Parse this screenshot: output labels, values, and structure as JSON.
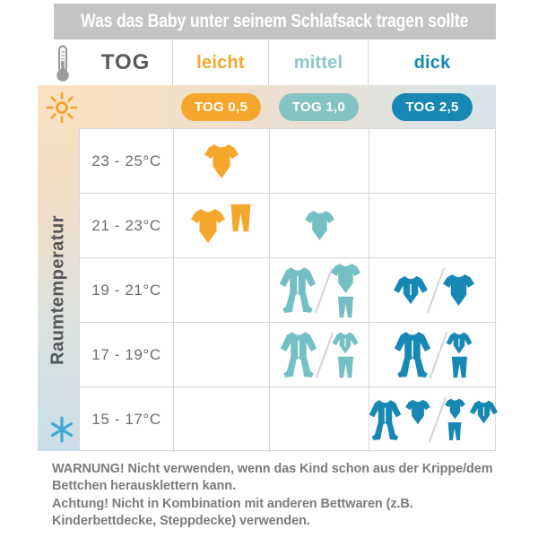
{
  "title": "Was das Baby unter seinem Schlafsack tragen sollte",
  "legend": {
    "tog_label": "TOG"
  },
  "columns": [
    {
      "id": "leicht",
      "label": "leicht",
      "badge": "TOG 0,5",
      "color": "#f5a62c"
    },
    {
      "id": "mittel",
      "label": "mittel",
      "badge": "TOG 1,0",
      "color": "#84c3c4"
    },
    {
      "id": "dick",
      "label": "dick",
      "badge": "TOG 2,5",
      "color": "#1787b4"
    }
  ],
  "sidebar": {
    "label": "Raumtemperatur"
  },
  "rows": [
    {
      "temp": "23 - 25°C",
      "leicht": [
        [
          [
            "bodysuit"
          ]
        ]
      ],
      "mittel": [],
      "dick": []
    },
    {
      "temp": "21 - 23°C",
      "leicht": [
        [
          [
            "bodysuit"
          ],
          [
            "pants"
          ]
        ]
      ],
      "mittel": [
        [
          [
            "bodysuit"
          ]
        ]
      ],
      "dick": []
    },
    {
      "temp": "19 - 21°C",
      "leicht": [],
      "mittel": [
        [
          [
            "sleepsuit"
          ]
        ],
        [
          [
            "bodysuit",
            "pants"
          ]
        ]
      ],
      "dick": [
        [
          [
            "longsleeve"
          ]
        ],
        [
          [
            "bodysuit"
          ]
        ]
      ]
    },
    {
      "temp": "17 - 19°C",
      "leicht": [],
      "mittel": [
        [
          [
            "sleepsuit"
          ]
        ],
        [
          [
            "longsleeve",
            "pants"
          ]
        ]
      ],
      "dick": [
        [
          [
            "sleepsuit"
          ]
        ],
        [
          [
            "longsleeve",
            "pants"
          ]
        ]
      ]
    },
    {
      "temp": "15 - 17°C",
      "leicht": [],
      "mittel": [],
      "dick": [
        [
          [
            "sleepsuit"
          ],
          [
            "bodysuit"
          ]
        ],
        [
          [
            "bodysuit",
            "pants"
          ],
          [
            "longsleeve"
          ]
        ]
      ]
    }
  ],
  "warning": {
    "line1": "WARNUNG! Nicht verwenden, wenn das Kind schon aus der Krippe/dem Bettchen herausklettern kann.",
    "line2": "Achtung! Nicht in Kombination mit anderen Bettwaren (z.B. Kinderbettdecke, Steppdecke) verwenden."
  }
}
